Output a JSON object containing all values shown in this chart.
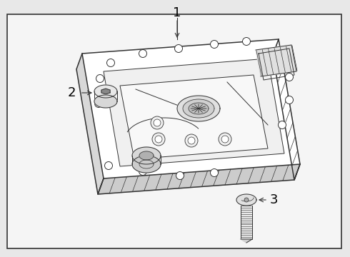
{
  "bg_color": "#e8e8e8",
  "box_bg": "#e8e8e8",
  "line_color": "#333333",
  "label_color": "#000000",
  "pan_face_color": "#ffffff",
  "pan_side_color": "#e0e0e0"
}
